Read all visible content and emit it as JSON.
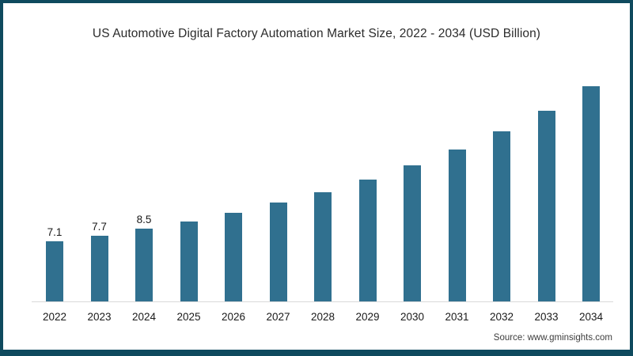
{
  "title": "US Automotive Digital Factory Automation Market Size, 2022 - 2034 (USD Billion)",
  "source": "Source: www.gminsights.com",
  "colors": {
    "bar": "#30708F",
    "frame": "#0F4A5E",
    "axis_line": "#D9D9D9",
    "title_text": "#2B2B2B",
    "tick_text": "#1A1A1A",
    "source_text": "#3D3D3D",
    "background": "#FFFFFF"
  },
  "chart_data": {
    "type": "bar",
    "title": "US Automotive Digital Factory Automation Market Size, 2022 - 2034 (USD Billion)",
    "xlabel": "",
    "ylabel": "",
    "categories": [
      "2022",
      "2023",
      "2024",
      "2025",
      "2026",
      "2027",
      "2028",
      "2029",
      "2030",
      "2031",
      "2032",
      "2033",
      "2034"
    ],
    "values": [
      7.1,
      7.7,
      8.5,
      9.4,
      10.4,
      11.6,
      12.8,
      14.3,
      16.0,
      17.8,
      20.0,
      22.4,
      25.3
    ],
    "data_labels": [
      "7.1",
      "7.7",
      "8.5",
      "",
      "",
      "",
      "",
      "",
      "",
      "",
      "",
      "",
      ""
    ],
    "ylim": [
      0,
      26
    ],
    "yaxis_visible": false,
    "grid": false,
    "legend": false,
    "bar_color": "#30708F"
  }
}
